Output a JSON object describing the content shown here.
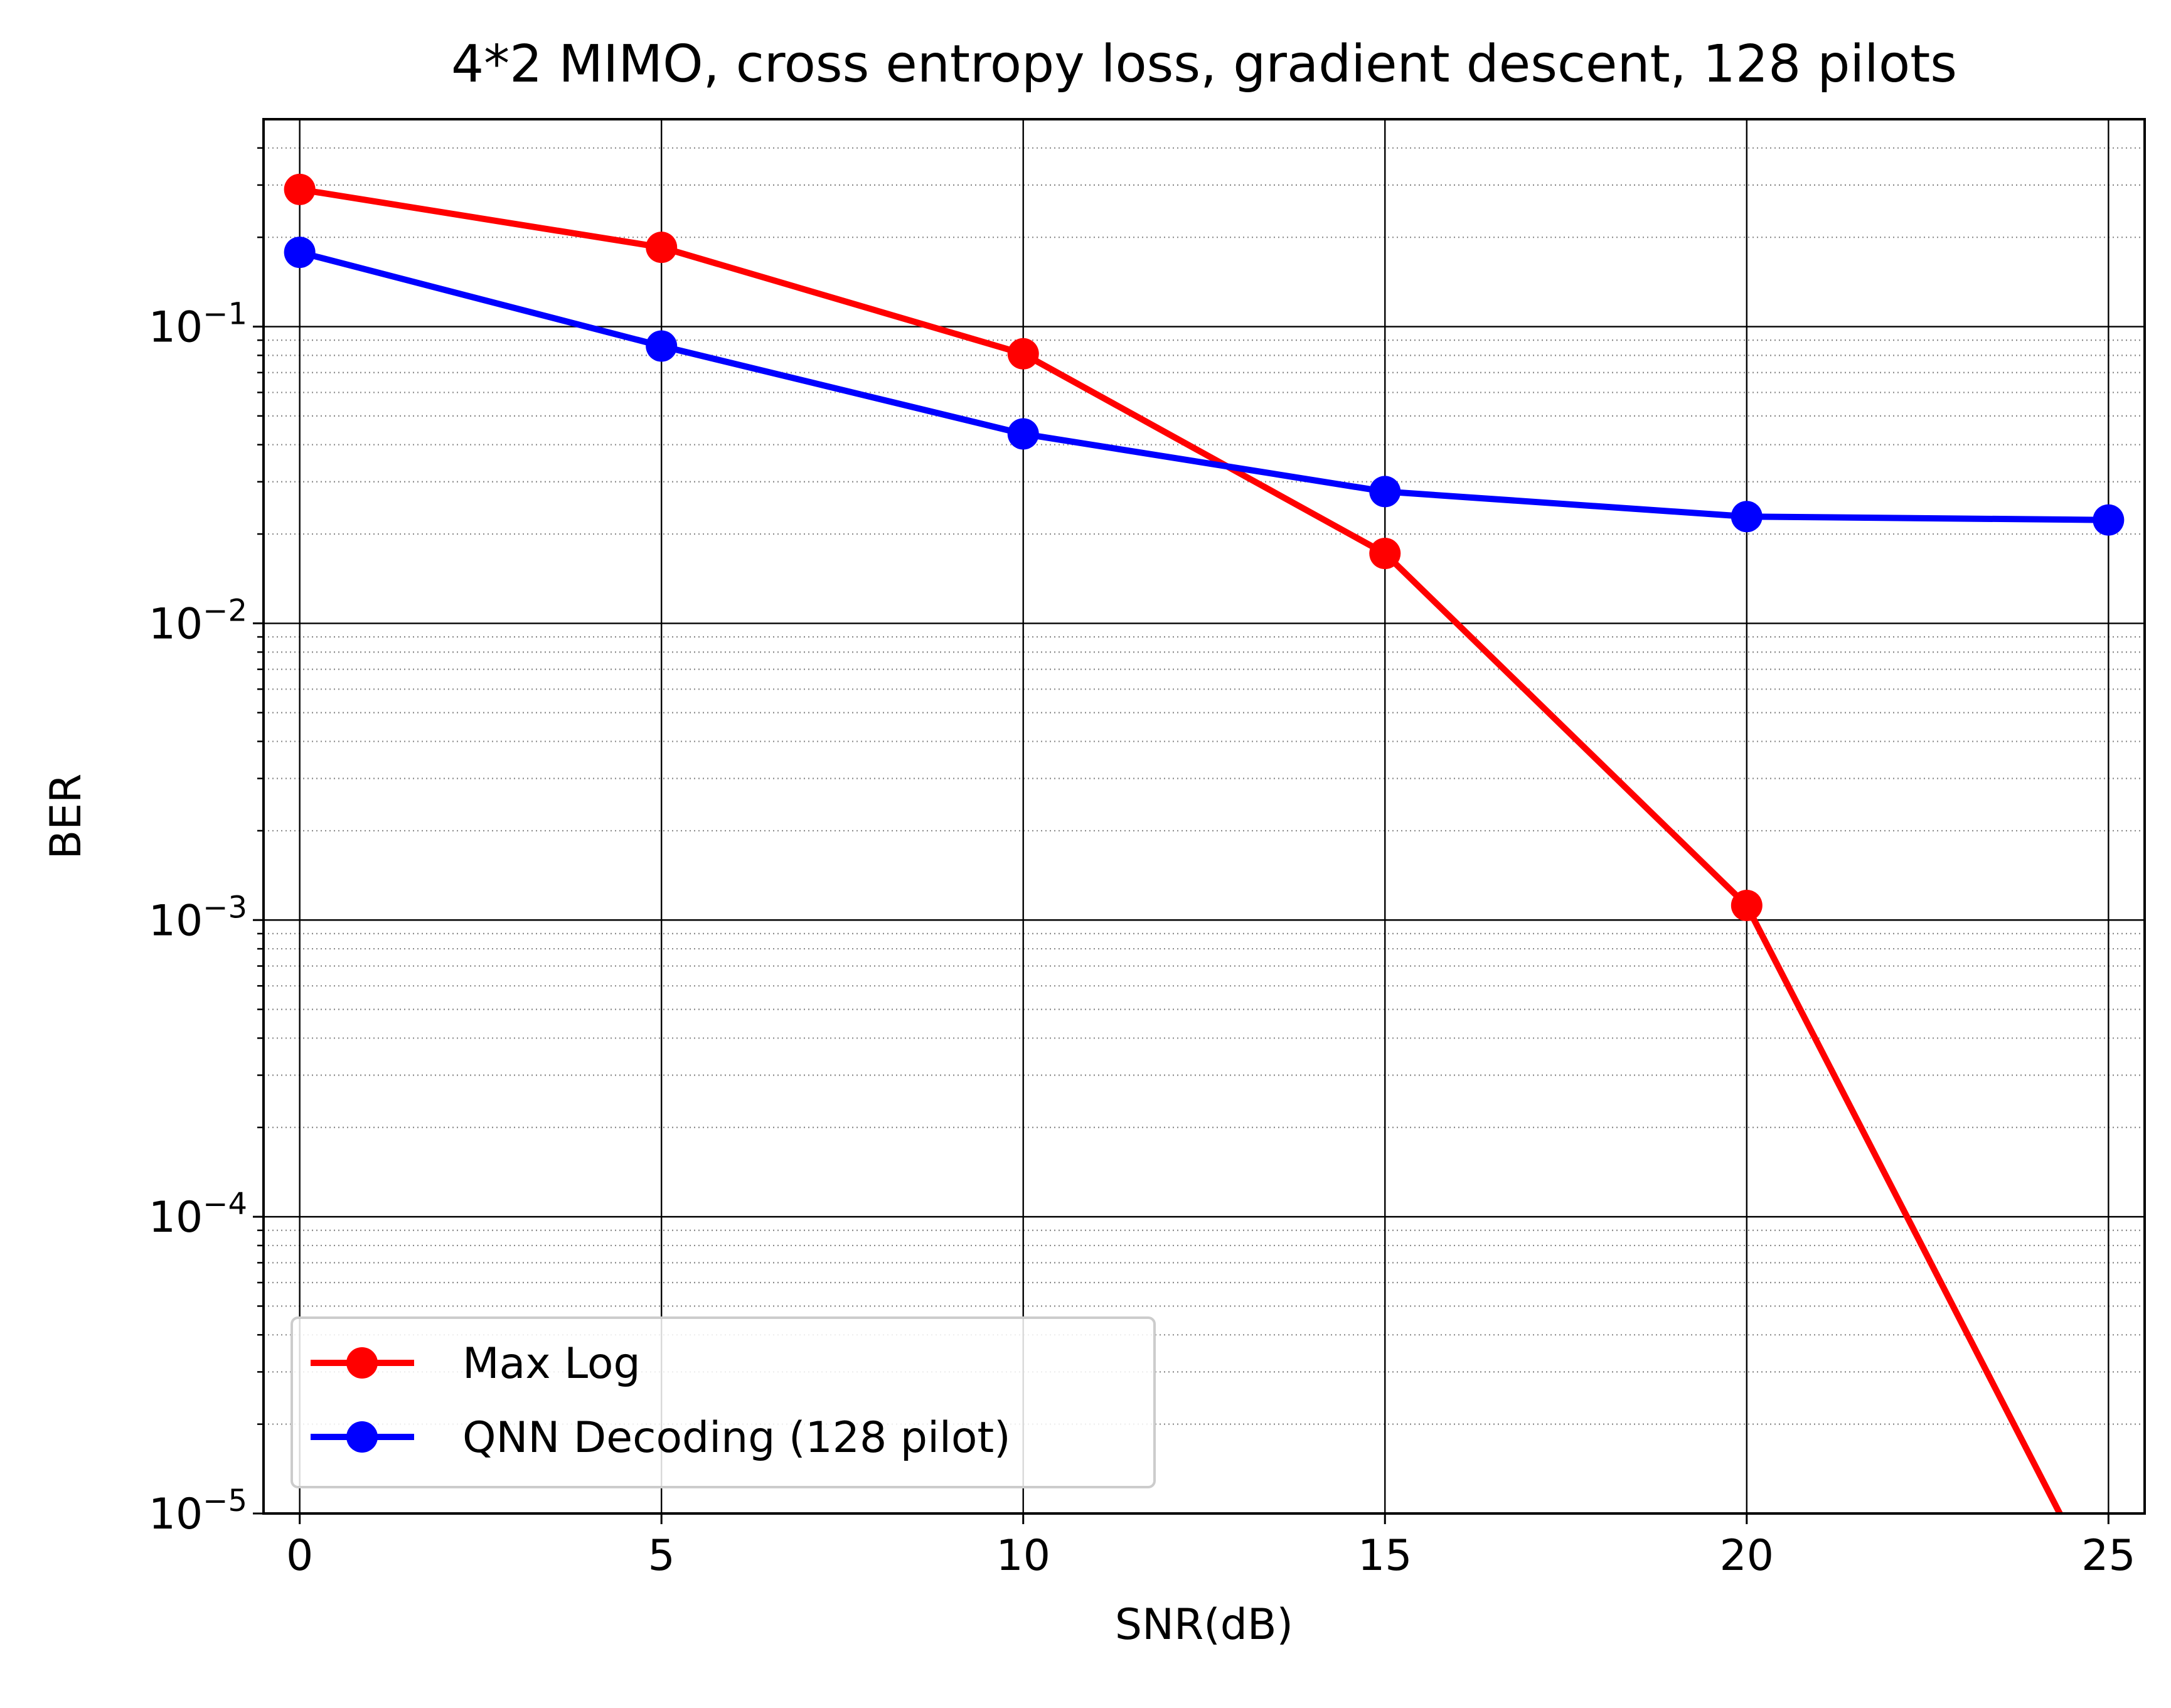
{
  "chart_data": {
    "type": "line",
    "title": "4*2 MIMO, cross entropy loss, gradient descent, 128 pilots",
    "xlabel": "SNR(dB)",
    "ylabel": "BER",
    "x_ticks": [
      0,
      5,
      10,
      15,
      20,
      25
    ],
    "x_tick_labels": [
      "0",
      "5",
      "10",
      "15",
      "20",
      "25"
    ],
    "y_scale": "log",
    "y_tick_exponents": [
      -5,
      -4,
      -3,
      -2,
      -1
    ],
    "y_tick_base": "10",
    "y_tick_labels": [
      "10^-5",
      "10^-4",
      "10^-3",
      "10^-2",
      "10^-1"
    ],
    "xlim": [
      -0.5,
      25.5
    ],
    "ylim": [
      1e-05,
      0.5
    ],
    "grid": {
      "major": true,
      "minor": true,
      "minor_style": "dotted"
    },
    "legend_position": "lower-left",
    "series": [
      {
        "name": "Max Log",
        "color": "#ff0000",
        "marker": "circle",
        "x": [
          0,
          5,
          10,
          15,
          20,
          25
        ],
        "y": [
          0.29,
          0.185,
          0.081,
          0.0172,
          0.00112,
          4.8e-06
        ]
      },
      {
        "name": "QNN Decoding (128 pilot)",
        "color": "#0000ff",
        "marker": "circle",
        "x": [
          0,
          5,
          10,
          15,
          20,
          25
        ],
        "y": [
          0.178,
          0.086,
          0.0435,
          0.0278,
          0.0229,
          0.0223
        ]
      }
    ]
  }
}
